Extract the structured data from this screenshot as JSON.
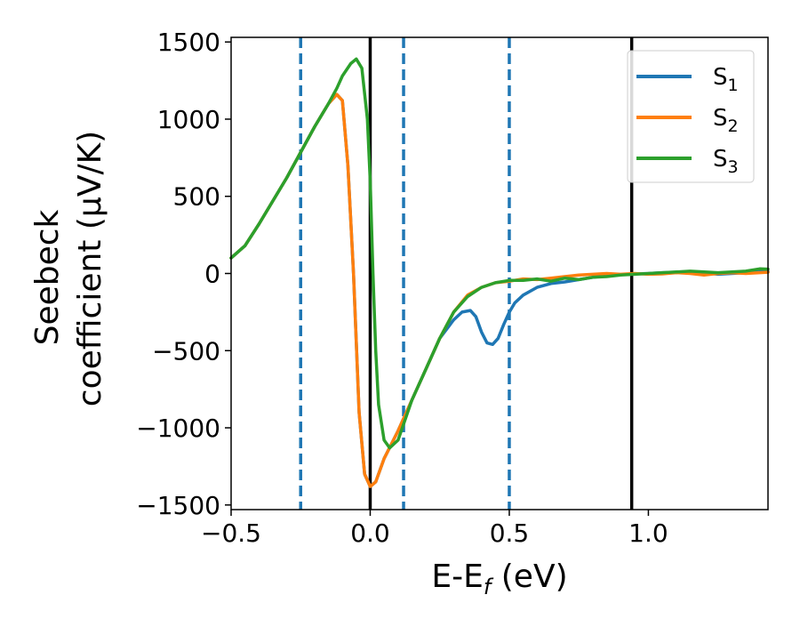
{
  "chart_data": {
    "type": "line",
    "xlabel_main": "E-E",
    "xlabel_sub": "f",
    "xlabel_tail": " (eV)",
    "ylabel_line1": "Seebeck",
    "ylabel_line2": "coefficient  (μV/K)",
    "xlim": [
      -0.5,
      1.43
    ],
    "ylim": [
      -1530,
      1530
    ],
    "xticks": [
      {
        "value": -0.5,
        "label": "−0.5"
      },
      {
        "value": 0.0,
        "label": "0.0"
      },
      {
        "value": 0.5,
        "label": "0.5"
      },
      {
        "value": 1.0,
        "label": "1.0"
      }
    ],
    "yticks": [
      {
        "value": 1500,
        "label": "1500"
      },
      {
        "value": 1000,
        "label": "1000"
      },
      {
        "value": 500,
        "label": "500"
      },
      {
        "value": 0,
        "label": "0"
      },
      {
        "value": -500,
        "label": "−500"
      },
      {
        "value": -1000,
        "label": "−1000"
      },
      {
        "value": -1500,
        "label": "−1500"
      }
    ],
    "vlines": [
      {
        "x": -0.25,
        "style": "dashed",
        "color": "#1f77b4"
      },
      {
        "x": 0.0,
        "style": "solid",
        "color": "#000000"
      },
      {
        "x": 0.12,
        "style": "dashed",
        "color": "#1f77b4"
      },
      {
        "x": 0.5,
        "style": "dashed",
        "color": "#1f77b4"
      },
      {
        "x": 0.94,
        "style": "solid",
        "color": "#000000"
      }
    ],
    "legend_position": "upper right",
    "series": [
      {
        "name": "S",
        "subscript": "1",
        "color": "#1f77b4",
        "x": [
          -0.5,
          -0.45,
          -0.4,
          -0.3,
          -0.2,
          -0.15,
          -0.12,
          -0.1,
          -0.08,
          -0.06,
          -0.04,
          -0.02,
          0.0,
          0.02,
          0.05,
          0.1,
          0.15,
          0.2,
          0.25,
          0.3,
          0.33,
          0.36,
          0.38,
          0.4,
          0.42,
          0.44,
          0.46,
          0.48,
          0.5,
          0.52,
          0.55,
          0.6,
          0.65,
          0.7,
          0.75,
          0.8,
          0.85,
          0.9,
          0.95,
          1.0,
          1.05,
          1.1,
          1.15,
          1.2,
          1.25,
          1.3,
          1.35,
          1.4,
          1.43
        ],
        "y": [
          100,
          180,
          320,
          620,
          950,
          1100,
          1160,
          1120,
          700,
          0,
          -900,
          -1300,
          -1380,
          -1350,
          -1200,
          -1020,
          -820,
          -620,
          -420,
          -300,
          -250,
          -240,
          -280,
          -380,
          -450,
          -460,
          -420,
          -330,
          -250,
          -190,
          -140,
          -90,
          -65,
          -55,
          -40,
          -25,
          -15,
          -8,
          -3,
          0,
          5,
          8,
          10,
          5,
          -5,
          0,
          5,
          10,
          12
        ]
      },
      {
        "name": "S",
        "subscript": "2",
        "color": "#ff7f0e",
        "x": [
          -0.5,
          -0.45,
          -0.4,
          -0.3,
          -0.2,
          -0.15,
          -0.12,
          -0.1,
          -0.08,
          -0.06,
          -0.04,
          -0.02,
          0.0,
          0.02,
          0.05,
          0.1,
          0.15,
          0.2,
          0.25,
          0.3,
          0.35,
          0.4,
          0.45,
          0.5,
          0.55,
          0.6,
          0.65,
          0.7,
          0.75,
          0.8,
          0.85,
          0.9,
          0.95,
          1.0,
          1.05,
          1.1,
          1.15,
          1.2,
          1.25,
          1.3,
          1.35,
          1.4,
          1.43
        ],
        "y": [
          100,
          180,
          320,
          620,
          950,
          1100,
          1160,
          1120,
          700,
          0,
          -900,
          -1300,
          -1380,
          -1350,
          -1200,
          -1020,
          -820,
          -620,
          -420,
          -250,
          -140,
          -90,
          -60,
          -50,
          -35,
          -40,
          -30,
          -20,
          -10,
          -5,
          0,
          -5,
          0,
          -5,
          -3,
          5,
          0,
          -10,
          0,
          5,
          0,
          5,
          8
        ]
      },
      {
        "name": "S",
        "subscript": "3",
        "color": "#2ca02c",
        "x": [
          -0.5,
          -0.45,
          -0.4,
          -0.3,
          -0.2,
          -0.15,
          -0.12,
          -0.1,
          -0.07,
          -0.05,
          -0.03,
          -0.01,
          0.0,
          0.01,
          0.02,
          0.03,
          0.05,
          0.07,
          0.1,
          0.15,
          0.2,
          0.25,
          0.3,
          0.35,
          0.4,
          0.45,
          0.5,
          0.55,
          0.6,
          0.65,
          0.7,
          0.75,
          0.8,
          0.85,
          0.9,
          0.95,
          1.0,
          1.05,
          1.1,
          1.15,
          1.2,
          1.25,
          1.3,
          1.35,
          1.4,
          1.43
        ],
        "y": [
          100,
          180,
          320,
          620,
          950,
          1100,
          1200,
          1280,
          1360,
          1390,
          1330,
          1000,
          600,
          0,
          -500,
          -850,
          -1080,
          -1130,
          -1080,
          -820,
          -620,
          -420,
          -250,
          -150,
          -90,
          -60,
          -45,
          -45,
          -35,
          -50,
          -30,
          -40,
          -25,
          -20,
          -10,
          -5,
          0,
          5,
          10,
          15,
          10,
          5,
          10,
          15,
          30,
          28
        ]
      }
    ]
  }
}
